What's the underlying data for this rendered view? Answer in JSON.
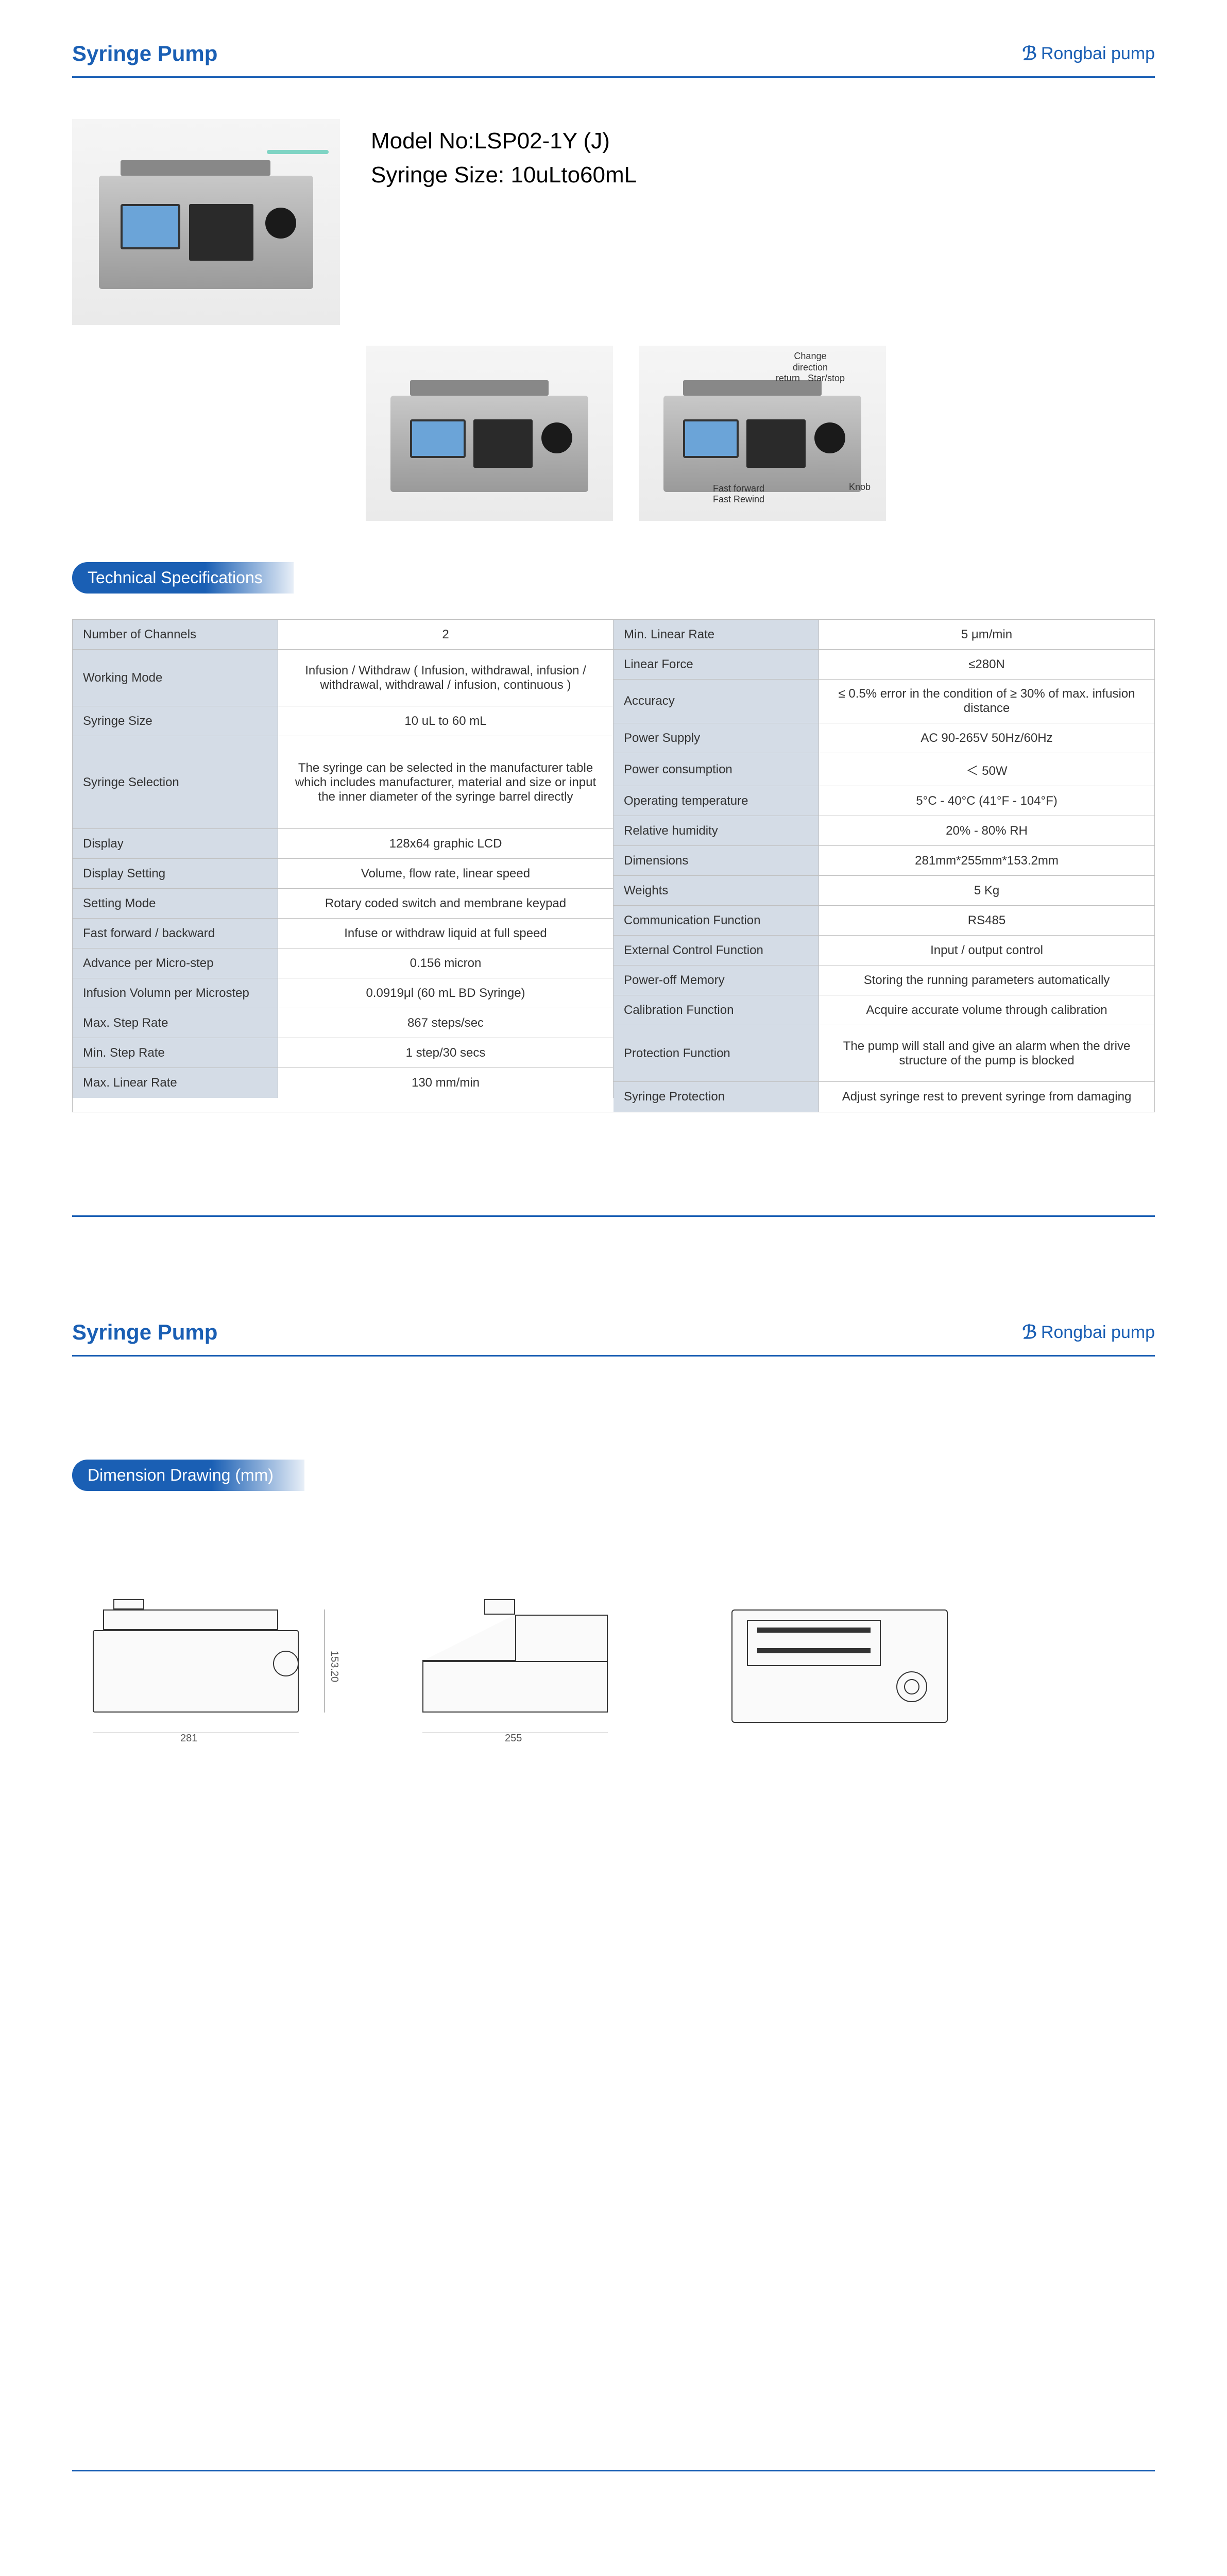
{
  "header": {
    "title": "Syringe Pump",
    "brand": "Rongbai pump"
  },
  "model": {
    "line1": "Model No:LSP02-1Y (J)",
    "line2": "Syringe Size: 10uLto60mL"
  },
  "annotations": {
    "top1": "Change",
    "top2": "direction",
    "top3": "return",
    "topRight": "Star/stop",
    "bottom1": "Fast forward",
    "bottom2": "Fast Rewind",
    "knob": "Knob"
  },
  "sections": {
    "specs": "Technical Specifications",
    "dims": "Dimension Drawing (mm)"
  },
  "specsLeft": [
    {
      "label": "Number of Channels",
      "value": "2",
      "h": ""
    },
    {
      "label": "Working Mode",
      "value": "Infusion / Withdraw ( Infusion, withdrawal, infusion / withdrawal, withdrawal / infusion, continuous )",
      "h": "med-row"
    },
    {
      "label": "Syringe Size",
      "value": "10 uL to 60 mL",
      "h": ""
    },
    {
      "label": "Syringe Selection",
      "value": "The syringe can be selected in the manufacturer table which includes manufacturer, material and size or input the inner diameter of the syringe barrel directly",
      "h": "tall-row"
    },
    {
      "label": "Display",
      "value": "128x64 graphic LCD",
      "h": ""
    },
    {
      "label": "Display Setting",
      "value": "Volume, flow rate, linear speed",
      "h": ""
    },
    {
      "label": "Setting Mode",
      "value": "Rotary coded switch and membrane keypad",
      "h": ""
    },
    {
      "label": "Fast forward / backward",
      "value": "Infuse or withdraw liquid at full speed",
      "h": ""
    },
    {
      "label": "Advance per Micro-step",
      "value": "0.156 micron",
      "h": ""
    },
    {
      "label": "Infusion Volumn per Microstep",
      "value": "0.0919μl (60 mL BD Syringe)",
      "h": ""
    },
    {
      "label": "Max. Step Rate",
      "value": "867 steps/sec",
      "h": ""
    },
    {
      "label": "Min. Step Rate",
      "value": "1 step/30 secs",
      "h": ""
    },
    {
      "label": "Max. Linear Rate",
      "value": "130 mm/min",
      "h": ""
    }
  ],
  "specsRight": [
    {
      "label": "Min. Linear Rate",
      "value": "5 μm/min",
      "h": ""
    },
    {
      "label": "Linear Force",
      "value": "≤280N",
      "h": ""
    },
    {
      "label": "Accuracy",
      "value": "≤ 0.5% error in the condition of ≥ 30% of max. infusion distance",
      "h": ""
    },
    {
      "label": "Power Supply",
      "value": "AC 90-265V  50Hz/60Hz",
      "h": ""
    },
    {
      "label": "Power consumption",
      "value": "＜ 50W",
      "h": ""
    },
    {
      "label": "Operating temperature",
      "value": "5°C - 40°C (41°F - 104°F)",
      "h": ""
    },
    {
      "label": "Relative humidity",
      "value": "20% - 80% RH",
      "h": ""
    },
    {
      "label": "Dimensions",
      "value": "281mm*255mm*153.2mm",
      "h": ""
    },
    {
      "label": "Weights",
      "value": "5 Kg",
      "h": ""
    },
    {
      "label": "Communication Function",
      "value": "RS485",
      "h": ""
    },
    {
      "label": "External Control Function",
      "value": "Input / output control",
      "h": ""
    },
    {
      "label": "Power-off Memory",
      "value": "Storing the running parameters automatically",
      "h": ""
    },
    {
      "label": "Calibration Function",
      "value": "Acquire accurate volume through calibration",
      "h": ""
    },
    {
      "label": "Protection Function",
      "value": "The pump will stall and give an alarm when the drive structure of the pump is blocked",
      "h": "med-row"
    },
    {
      "label": "Syringe Protection",
      "value": "Adjust syringe rest to prevent syringe from damaging",
      "h": ""
    }
  ],
  "dims": {
    "front_w": "281",
    "side_w": "255",
    "height": "153.20"
  },
  "colors": {
    "primary": "#1a5fb4",
    "labelBg": "#d4dce6",
    "border": "#c0c0c0"
  }
}
